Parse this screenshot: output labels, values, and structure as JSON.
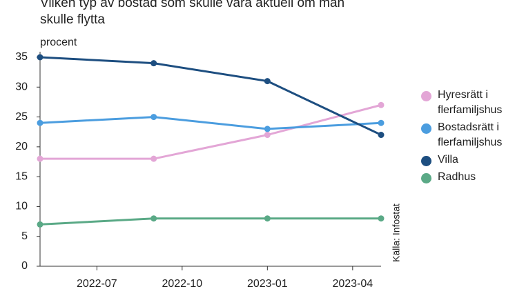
{
  "chart_data": {
    "type": "line",
    "title": "Vilken typ av bostad som skulle vara aktuell om man skulle flytta",
    "y_label": "procent",
    "source": "Källa: Infostat",
    "x": [
      "2022-05",
      "2022-09",
      "2023-01",
      "2023-05"
    ],
    "xlim": [
      "2022-05",
      "2023-05"
    ],
    "xticks": [
      "2022-07",
      "2022-10",
      "2023-01",
      "2023-04"
    ],
    "ylim": [
      0,
      35
    ],
    "yticks": [
      0,
      5,
      10,
      15,
      20,
      25,
      30,
      35
    ],
    "series": [
      {
        "name": "Hyresrätt i flerfamiljshus",
        "color": "#e3a6d6",
        "values": [
          18,
          18,
          22,
          27
        ]
      },
      {
        "name": "Bostadsrätt i flerfamiljshus",
        "color": "#4b9ddf",
        "values": [
          24,
          25,
          23,
          24
        ]
      },
      {
        "name": "Villa",
        "color": "#1d4e80",
        "values": [
          35,
          34,
          31,
          22
        ]
      },
      {
        "name": "Radhus",
        "color": "#5aa986",
        "values": [
          7,
          8,
          8,
          8
        ]
      }
    ]
  }
}
